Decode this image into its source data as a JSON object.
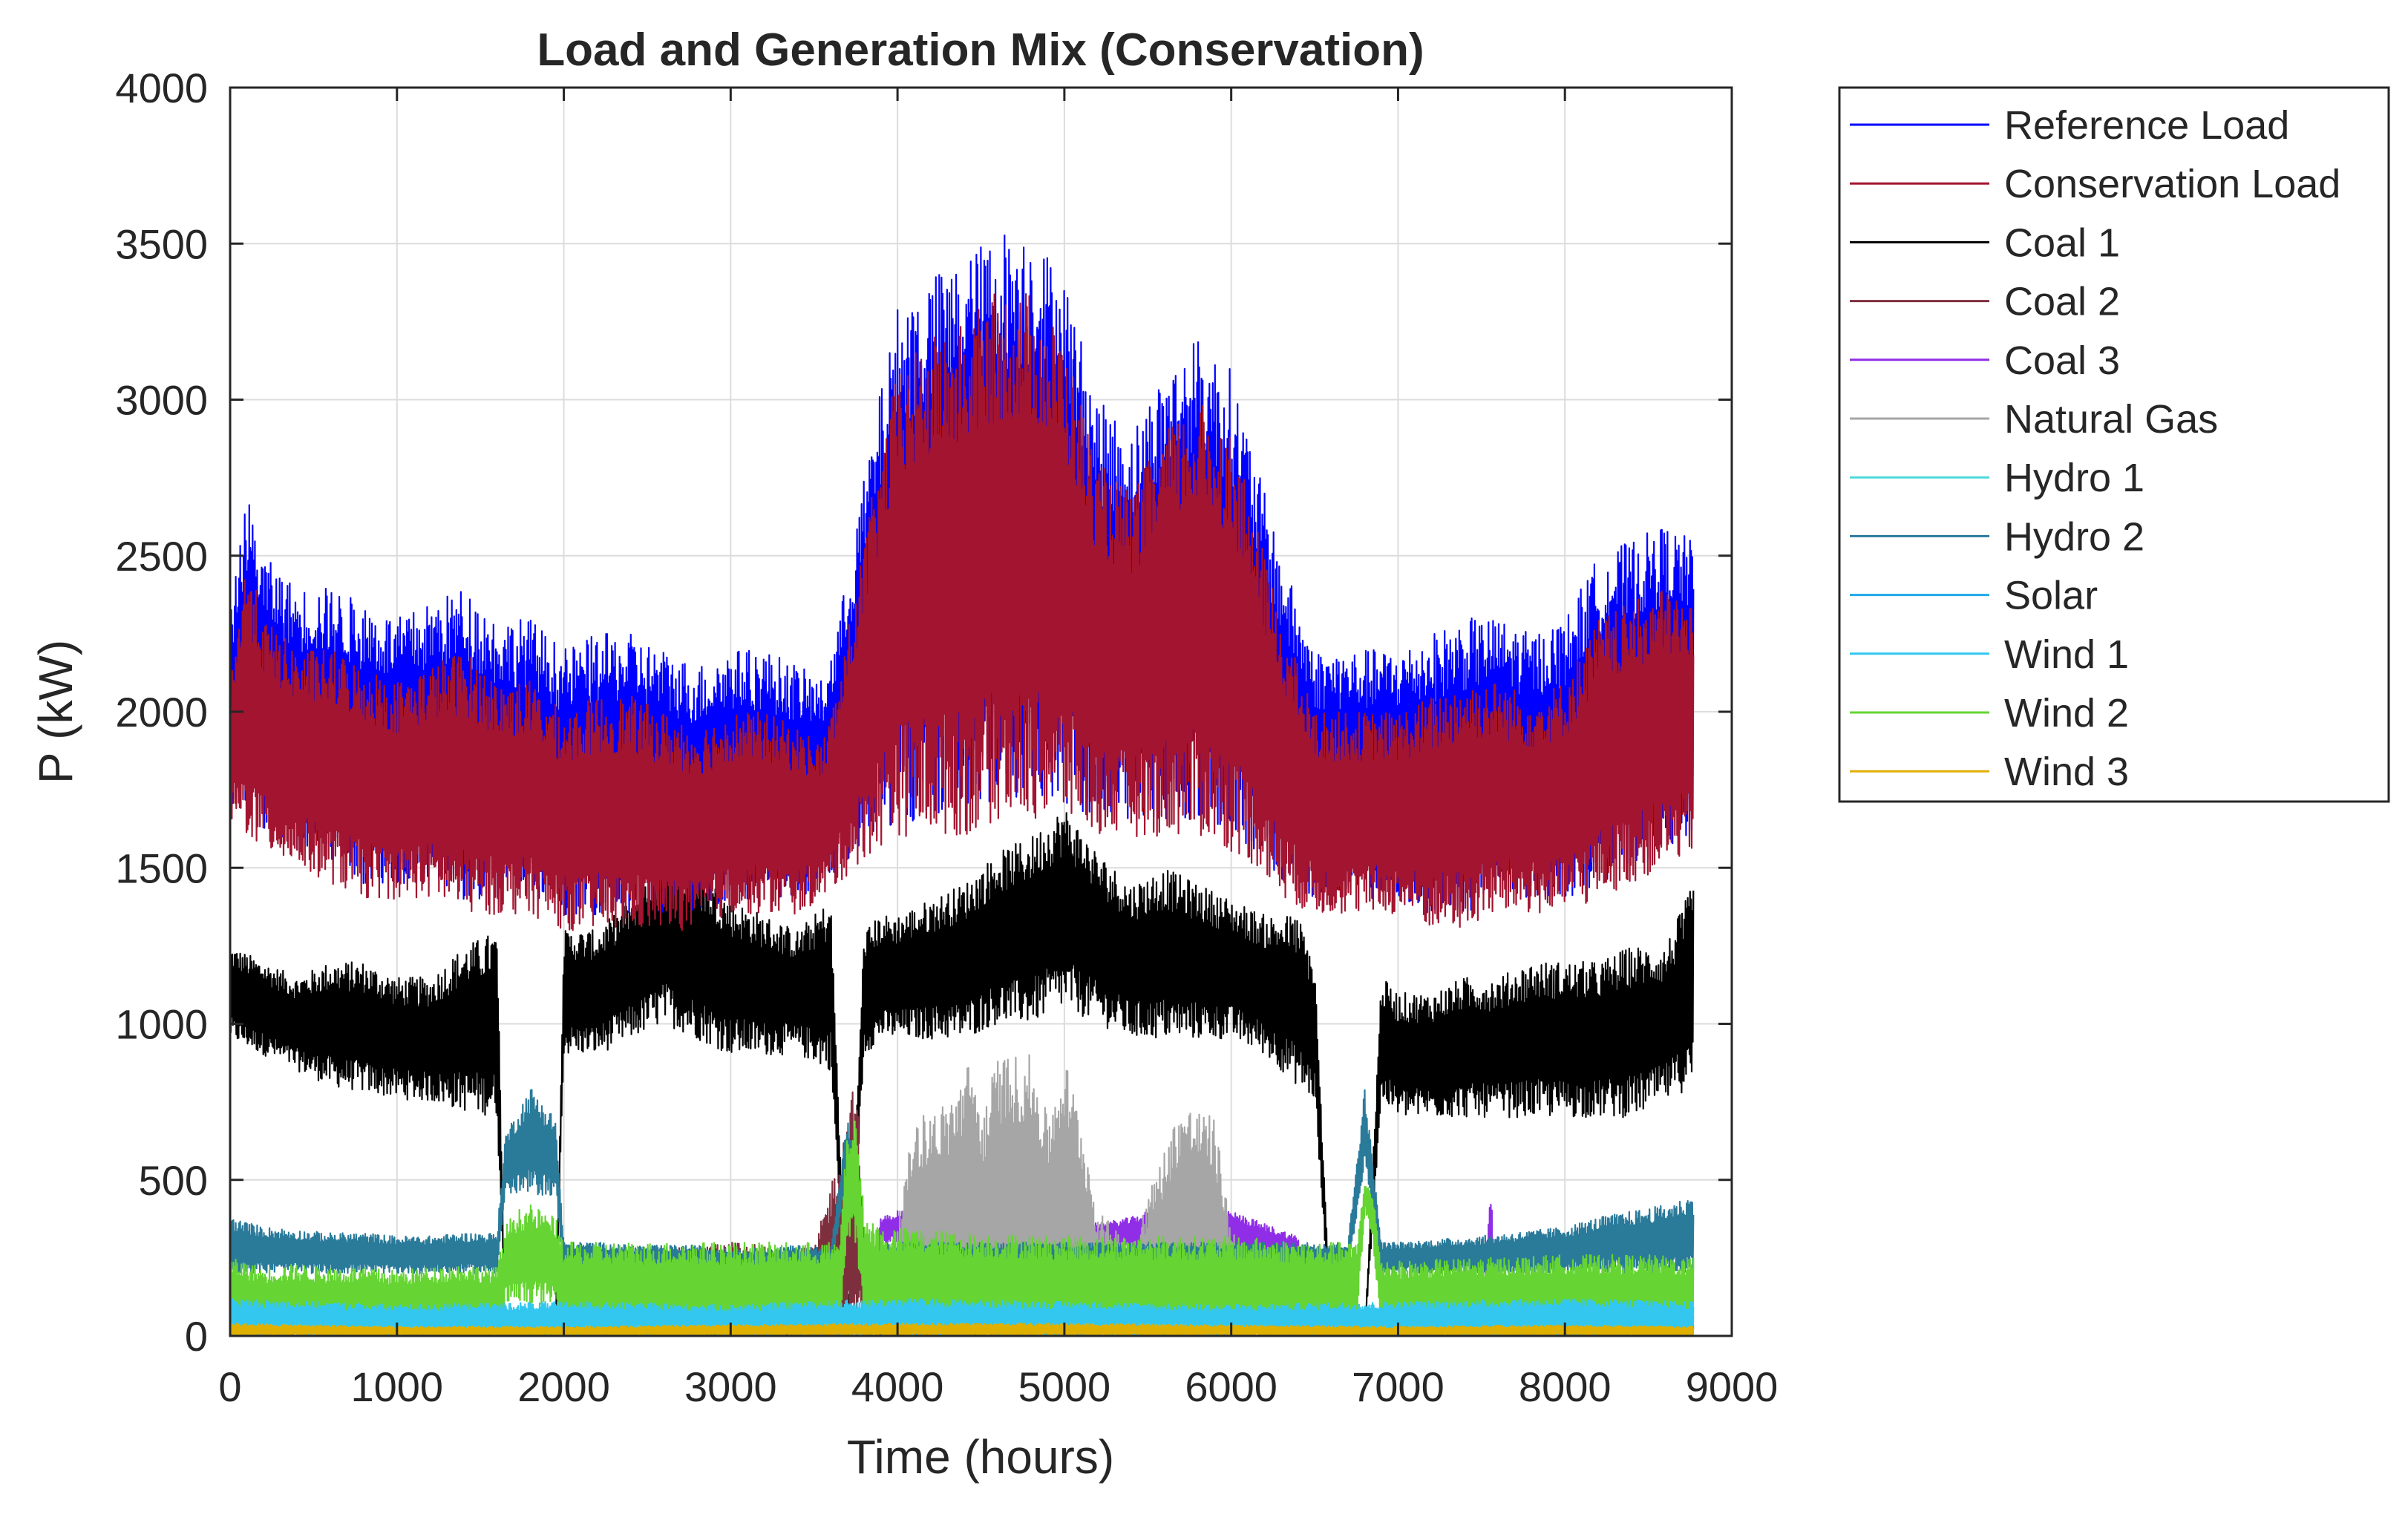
{
  "chart_data": {
    "type": "line",
    "title": "Load and Generation Mix (Conservation)",
    "xlabel": "Time (hours)",
    "ylabel": "P (kW)",
    "xlim": [
      0,
      9000
    ],
    "ylim": [
      0,
      4000
    ],
    "xticks": [
      0,
      1000,
      2000,
      3000,
      4000,
      5000,
      6000,
      7000,
      8000,
      9000
    ],
    "yticks": [
      0,
      500,
      1000,
      1500,
      2000,
      2500,
      3000,
      3500,
      4000
    ],
    "grid": true,
    "legend_position": "outside-top-right",
    "series": [
      {
        "name": "Reference Load",
        "color": "#0000ff",
        "x": [
          0,
          100,
          200,
          400,
          600,
          800,
          1000,
          1200,
          1400,
          1600,
          1800,
          2000,
          2200,
          2400,
          2600,
          2800,
          3000,
          3200,
          3400,
          3550,
          3650,
          3750,
          3850,
          4000,
          4200,
          4400,
          4600,
          4800,
          5000,
          5200,
          5400,
          5600,
          5800,
          6000,
          6150,
          6300,
          6500,
          6800,
          7000,
          7200,
          7400,
          7600,
          7800,
          8000,
          8200,
          8400,
          8600,
          8770
        ],
        "min": [
          1700,
          1700,
          1600,
          1550,
          1500,
          1450,
          1450,
          1450,
          1400,
          1400,
          1400,
          1350,
          1350,
          1350,
          1350,
          1350,
          1400,
          1400,
          1400,
          1450,
          1500,
          1550,
          1600,
          1650,
          1650,
          1650,
          1700,
          1700,
          1700,
          1650,
          1650,
          1650,
          1650,
          1600,
          1550,
          1450,
          1400,
          1400,
          1400,
          1350,
          1350,
          1400,
          1400,
          1400,
          1450,
          1500,
          1550,
          1600
        ],
        "max": [
          2300,
          2700,
          2500,
          2400,
          2400,
          2350,
          2300,
          2350,
          2400,
          2300,
          2300,
          2200,
          2250,
          2250,
          2200,
          2150,
          2200,
          2200,
          2150,
          2100,
          2300,
          2600,
          2900,
          3300,
          3400,
          3450,
          3550,
          3550,
          3400,
          3000,
          2900,
          3100,
          3200,
          3100,
          2800,
          2500,
          2200,
          2200,
          2200,
          2250,
          2300,
          2300,
          2250,
          2300,
          2500,
          2550,
          2600,
          2550
        ]
      },
      {
        "name": "Conservation Load",
        "color": "#a2142f",
        "x": [
          0,
          100,
          200,
          400,
          600,
          800,
          1000,
          1200,
          1400,
          1600,
          1800,
          2000,
          2200,
          2400,
          2600,
          2800,
          3000,
          3200,
          3400,
          3550,
          3650,
          3750,
          3850,
          4000,
          4200,
          4400,
          4600,
          4800,
          5000,
          5200,
          5400,
          5600,
          5800,
          6000,
          6150,
          6300,
          6500,
          6800,
          7000,
          7200,
          7400,
          7600,
          7800,
          8000,
          8200,
          8400,
          8600,
          8770
        ],
        "min": [
          1650,
          1600,
          1550,
          1500,
          1450,
          1400,
          1400,
          1400,
          1350,
          1350,
          1350,
          1300,
          1300,
          1300,
          1300,
          1300,
          1350,
          1350,
          1350,
          1400,
          1450,
          1500,
          1550,
          1600,
          1600,
          1600,
          1650,
          1650,
          1650,
          1600,
          1600,
          1600,
          1600,
          1550,
          1500,
          1400,
          1350,
          1350,
          1350,
          1300,
          1300,
          1350,
          1350,
          1350,
          1400,
          1450,
          1500,
          1550
        ],
        "max": [
          2100,
          2500,
          2300,
          2200,
          2200,
          2150,
          2100,
          2150,
          2200,
          2100,
          2100,
          2000,
          2050,
          2050,
          2000,
          1950,
          2000,
          2000,
          1950,
          1900,
          2100,
          2400,
          2700,
          3100,
          3200,
          3250,
          3350,
          3350,
          3200,
          2800,
          2700,
          2900,
          3000,
          2900,
          2600,
          2300,
          2000,
          2000,
          2000,
          2050,
          2100,
          2100,
          2050,
          2100,
          2300,
          2350,
          2400,
          2350
        ]
      },
      {
        "name": "Coal 1",
        "color": "#000000",
        "x": [
          0,
          200,
          400,
          600,
          800,
          1000,
          1200,
          1400,
          1600,
          1650,
          1700,
          1800,
          1950,
          2000,
          2200,
          2400,
          2600,
          2800,
          3000,
          3200,
          3400,
          3600,
          3700,
          3800,
          3900,
          4000,
          4200,
          4400,
          4600,
          4800,
          5000,
          5200,
          5400,
          5600,
          5800,
          6000,
          6200,
          6400,
          6500,
          6600,
          6800,
          6900,
          7000,
          7200,
          7400,
          7600,
          7800,
          8000,
          8200,
          8400,
          8600,
          8770
        ],
        "min": [
          950,
          900,
          850,
          800,
          780,
          760,
          750,
          720,
          700,
          0,
          0,
          0,
          0,
          900,
          900,
          950,
          1000,
          950,
          900,
          900,
          900,
          850,
          0,
          900,
          950,
          950,
          950,
          950,
          1000,
          1000,
          1050,
          1000,
          950,
          950,
          950,
          950,
          900,
          800,
          750,
          0,
          0,
          750,
          700,
          700,
          700,
          700,
          700,
          700,
          700,
          700,
          750,
          800
        ],
        "max": [
          1250,
          1200,
          1150,
          1200,
          1200,
          1150,
          1150,
          1250,
          1300,
          0,
          0,
          0,
          0,
          1300,
          1300,
          1400,
          1550,
          1500,
          1400,
          1350,
          1300,
          1400,
          0,
          1300,
          1350,
          1350,
          1400,
          1450,
          1550,
          1600,
          1700,
          1550,
          1450,
          1500,
          1450,
          1400,
          1350,
          1350,
          1200,
          0,
          0,
          1150,
          1100,
          1100,
          1150,
          1150,
          1200,
          1200,
          1200,
          1250,
          1250,
          1450
        ]
      },
      {
        "name": "Coal 2",
        "color": "#7e2f3e",
        "x": [
          0,
          1600,
          1650,
          1900,
          2000,
          2600,
          3000,
          3500,
          3700,
          3750,
          3800,
          3900,
          7000,
          8000,
          8770
        ],
        "min": [
          0,
          0,
          0,
          0,
          0,
          0,
          0,
          0,
          0,
          0,
          0,
          0,
          0,
          0,
          0
        ],
        "max": [
          0,
          0,
          0,
          0,
          0,
          280,
          300,
          280,
          700,
          850,
          350,
          0,
          0,
          0,
          0
        ]
      },
      {
        "name": "Coal 3",
        "color": "#8f2ee6",
        "x": [
          0,
          3800,
          3900,
          4000,
          4200,
          4400,
          4600,
          4800,
          5000,
          5200,
          5400,
          5600,
          5800,
          6000,
          6200,
          6400,
          6500,
          7000,
          7500,
          7550,
          7600,
          8770
        ],
        "min": [
          0,
          0,
          300,
          300,
          320,
          320,
          330,
          320,
          300,
          280,
          280,
          300,
          300,
          280,
          250,
          230,
          0,
          0,
          0,
          0,
          0,
          0
        ],
        "max": [
          0,
          0,
          380,
          400,
          420,
          420,
          420,
          400,
          380,
          360,
          380,
          420,
          420,
          400,
          360,
          320,
          0,
          0,
          0,
          550,
          0,
          0
        ]
      },
      {
        "name": "Natural Gas",
        "color": "#a6a6a6",
        "x": [
          0,
          3900,
          4000,
          4100,
          4300,
          4450,
          4500,
          4600,
          4700,
          4800,
          4900,
          5000,
          5100,
          5200,
          5400,
          5700,
          5900,
          6000,
          6500,
          8770
        ],
        "min": [
          0,
          0,
          0,
          0,
          0,
          0,
          0,
          0,
          0,
          0,
          0,
          0,
          0,
          0,
          0,
          0,
          0,
          0,
          0,
          0
        ],
        "max": [
          0,
          0,
          350,
          700,
          750,
          900,
          700,
          900,
          900,
          900,
          700,
          900,
          700,
          400,
          300,
          750,
          700,
          350,
          0,
          0
        ]
      },
      {
        "name": "Hydro 1",
        "color": "#4dd9d9",
        "x": [
          0,
          500,
          1000,
          1500,
          2000,
          2500,
          3000,
          3500,
          4000,
          4500,
          5000,
          5500,
          6000,
          6500,
          7000,
          7500,
          8000,
          8500,
          8770
        ],
        "min": [
          0,
          0,
          0,
          0,
          0,
          0,
          0,
          0,
          0,
          0,
          0,
          0,
          0,
          0,
          0,
          0,
          0,
          0,
          0
        ],
        "max": [
          80,
          60,
          70,
          60,
          70,
          60,
          70,
          60,
          70,
          60,
          70,
          60,
          70,
          60,
          70,
          60,
          70,
          80,
          80
        ]
      },
      {
        "name": "Hydro 2",
        "color": "#2a7a9a",
        "x": [
          0,
          200,
          400,
          600,
          800,
          1000,
          1200,
          1400,
          1600,
          1650,
          1700,
          1800,
          1950,
          2000,
          2200,
          2400,
          2600,
          2800,
          3000,
          3200,
          3400,
          3600,
          3700,
          3800,
          3900,
          4000,
          4500,
          5000,
          5500,
          6000,
          6500,
          6700,
          6800,
          6900,
          7000,
          7500,
          8000,
          8200,
          8400,
          8600,
          8770
        ],
        "min": [
          200,
          200,
          200,
          200,
          200,
          200,
          200,
          200,
          200,
          450,
          450,
          450,
          450,
          200,
          200,
          200,
          200,
          200,
          200,
          200,
          200,
          200,
          500,
          200,
          200,
          200,
          200,
          200,
          200,
          200,
          200,
          200,
          550,
          200,
          200,
          200,
          200,
          200,
          200,
          200,
          200
        ],
        "max": [
          380,
          350,
          340,
          330,
          330,
          320,
          320,
          330,
          330,
          650,
          700,
          800,
          700,
          300,
          300,
          290,
          290,
          290,
          280,
          280,
          290,
          280,
          700,
          300,
          300,
          300,
          300,
          300,
          300,
          300,
          300,
          300,
          800,
          300,
          300,
          320,
          350,
          380,
          400,
          420,
          450
        ]
      },
      {
        "name": "Solar",
        "color": "#1fa8e6",
        "x": [
          0,
          1000,
          2000,
          3000,
          4000,
          5000,
          6000,
          7000,
          8000,
          8770
        ],
        "min": [
          0,
          0,
          0,
          0,
          0,
          0,
          0,
          0,
          0,
          0
        ],
        "max": [
          40,
          50,
          60,
          70,
          80,
          80,
          70,
          60,
          50,
          40
        ]
      },
      {
        "name": "Wind 1",
        "color": "#33c7f0",
        "x": [
          0,
          1000,
          2000,
          3000,
          4000,
          5000,
          6000,
          7000,
          8000,
          8770
        ],
        "min": [
          0,
          0,
          0,
          0,
          0,
          0,
          0,
          0,
          0,
          0
        ],
        "max": [
          120,
          100,
          110,
          100,
          120,
          110,
          100,
          110,
          120,
          110
        ]
      },
      {
        "name": "Wind 2",
        "color": "#66d433",
        "x": [
          0,
          200,
          400,
          600,
          800,
          1000,
          1200,
          1400,
          1600,
          1650,
          1700,
          1800,
          1950,
          2000,
          2500,
          3000,
          3500,
          3650,
          3700,
          3750,
          3800,
          3900,
          4500,
          5000,
          5500,
          6000,
          6500,
          6750,
          6800,
          6850,
          6900,
          7000,
          7500,
          8000,
          8500,
          8770
        ],
        "min": [
          0,
          0,
          0,
          0,
          0,
          0,
          0,
          0,
          0,
          100,
          100,
          100,
          100,
          0,
          0,
          0,
          0,
          0,
          300,
          300,
          0,
          0,
          0,
          0,
          0,
          0,
          0,
          0,
          400,
          300,
          0,
          0,
          0,
          0,
          0,
          0
        ],
        "max": [
          250,
          220,
          230,
          220,
          220,
          210,
          220,
          230,
          220,
          350,
          400,
          420,
          380,
          300,
          300,
          300,
          300,
          300,
          650,
          700,
          400,
          350,
          330,
          320,
          320,
          320,
          300,
          300,
          500,
          450,
          250,
          240,
          250,
          260,
          260,
          250
        ]
      },
      {
        "name": "Wind 3",
        "color": "#e0b000",
        "x": [
          0,
          1000,
          2000,
          3000,
          4000,
          5000,
          6000,
          7000,
          8000,
          8770
        ],
        "min": [
          0,
          0,
          0,
          0,
          0,
          0,
          0,
          0,
          0,
          0
        ],
        "max": [
          40,
          30,
          30,
          35,
          40,
          40,
          35,
          30,
          35,
          30
        ]
      }
    ]
  }
}
